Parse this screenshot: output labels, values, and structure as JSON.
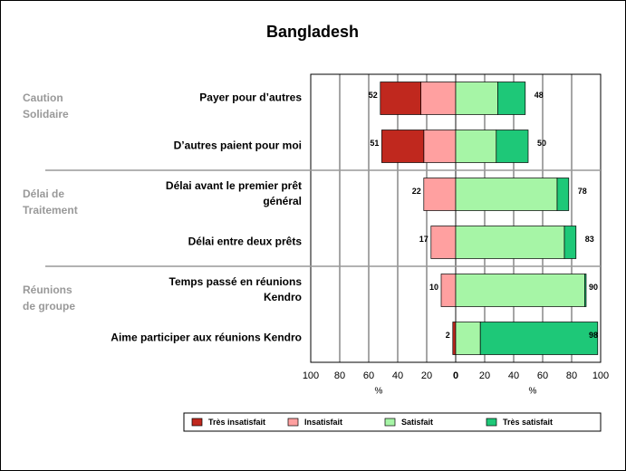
{
  "chart_data": {
    "type": "diverging-bar",
    "title": "Bangladesh",
    "groups": [
      [
        "Caution",
        "Solidaire"
      ],
      [
        "Délai de",
        "Traitement"
      ],
      [
        "Réunions",
        "de groupe"
      ]
    ],
    "categories": [
      [
        "Payer pour d’autres"
      ],
      [
        "D’autres paient pour moi"
      ],
      [
        "Délai avant le premier prêt",
        "général"
      ],
      [
        "Délai entre deux prêts"
      ],
      [
        "Temps passé en réunions",
        "Kendro"
      ],
      [
        "Aime participer aux réunions Kendro"
      ]
    ],
    "series": [
      {
        "name": "Très insatisfait",
        "color": "#c0281e",
        "side": "left",
        "values": [
          28,
          29,
          0,
          0,
          0,
          2
        ]
      },
      {
        "name": "Insatisfait",
        "color": "#ffa0a0",
        "side": "left",
        "values": [
          24,
          22,
          22,
          17,
          10,
          0
        ]
      },
      {
        "name": "Satisfait",
        "color": "#a6f5a6",
        "side": "right",
        "values": [
          29,
          28,
          70,
          75,
          89,
          17
        ]
      },
      {
        "name": "Très satisfait",
        "color": "#1ec878",
        "side": "right",
        "values": [
          19,
          22,
          8,
          8,
          1,
          81
        ]
      }
    ],
    "left_totals": [
      52,
      51,
      22,
      17,
      10,
      2
    ],
    "right_totals": [
      48,
      50,
      78,
      83,
      90,
      98
    ],
    "xlim_left": [
      0,
      100
    ],
    "xlim_right": [
      0,
      100
    ],
    "xticks_left": [
      100,
      80,
      60,
      40,
      20,
      0
    ],
    "xticks_right": [
      0,
      20,
      40,
      60,
      80,
      100
    ],
    "xlabel_left": "%",
    "xlabel_right": "%",
    "grid": true
  }
}
